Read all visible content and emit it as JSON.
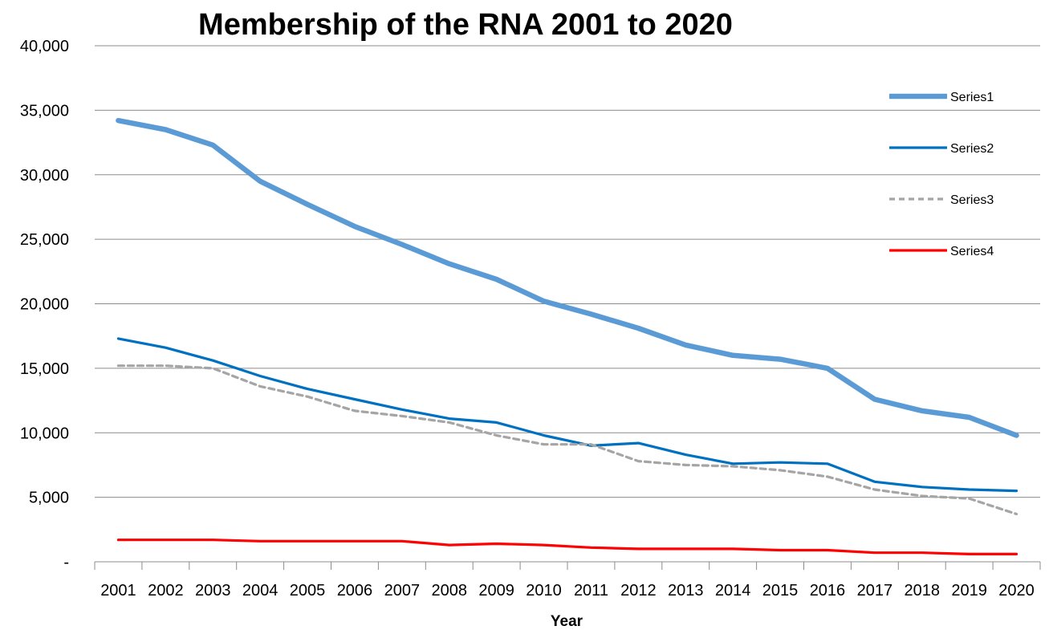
{
  "chart_data": {
    "type": "line",
    "title": "Membership of the RNA 2001 to 2020",
    "xlabel": "Year",
    "ylabel": "",
    "ylim": [
      0,
      40000
    ],
    "yticks": [
      0,
      5000,
      10000,
      15000,
      20000,
      25000,
      30000,
      35000,
      40000
    ],
    "ytick_labels": [
      "-",
      "5,000",
      "10,000",
      "15,000",
      "20,000",
      "25,000",
      "30,000",
      "35,000",
      "40,000"
    ],
    "grid": true,
    "legend_position": "right",
    "categories": [
      "2001",
      "2002",
      "2003",
      "2004",
      "2005",
      "2006",
      "2007",
      "2008",
      "2009",
      "2010",
      "2011",
      "2012",
      "2013",
      "2014",
      "2015",
      "2016",
      "2017",
      "2018",
      "2019",
      "2020"
    ],
    "series": [
      {
        "name": "Series1",
        "color": "#5B9BD5",
        "style": "solid-thick",
        "values": [
          34200,
          33500,
          32300,
          29500,
          27700,
          26000,
          24600,
          23100,
          21900,
          20200,
          19200,
          18100,
          16800,
          16000,
          15700,
          15000,
          12600,
          11700,
          11200,
          9800
        ]
      },
      {
        "name": "Series2",
        "color": "#0070C0",
        "style": "solid",
        "values": [
          17300,
          16600,
          15600,
          14400,
          13400,
          12600,
          11800,
          11100,
          10800,
          9800,
          9000,
          9200,
          8300,
          7600,
          7700,
          7600,
          6200,
          5800,
          5600,
          5500
        ]
      },
      {
        "name": "Series3",
        "color": "#A5A5A5",
        "style": "dashed",
        "values": [
          15200,
          15200,
          15000,
          13600,
          12800,
          11700,
          11300,
          10800,
          9800,
          9100,
          9100,
          7800,
          7500,
          7400,
          7100,
          6600,
          5600,
          5100,
          4900,
          3700
        ]
      },
      {
        "name": "Series4",
        "color": "#FF0000",
        "style": "solid",
        "values": [
          1700,
          1700,
          1700,
          1600,
          1600,
          1600,
          1600,
          1300,
          1400,
          1300,
          1100,
          1000,
          1000,
          1000,
          900,
          900,
          700,
          700,
          600,
          600
        ]
      }
    ]
  }
}
